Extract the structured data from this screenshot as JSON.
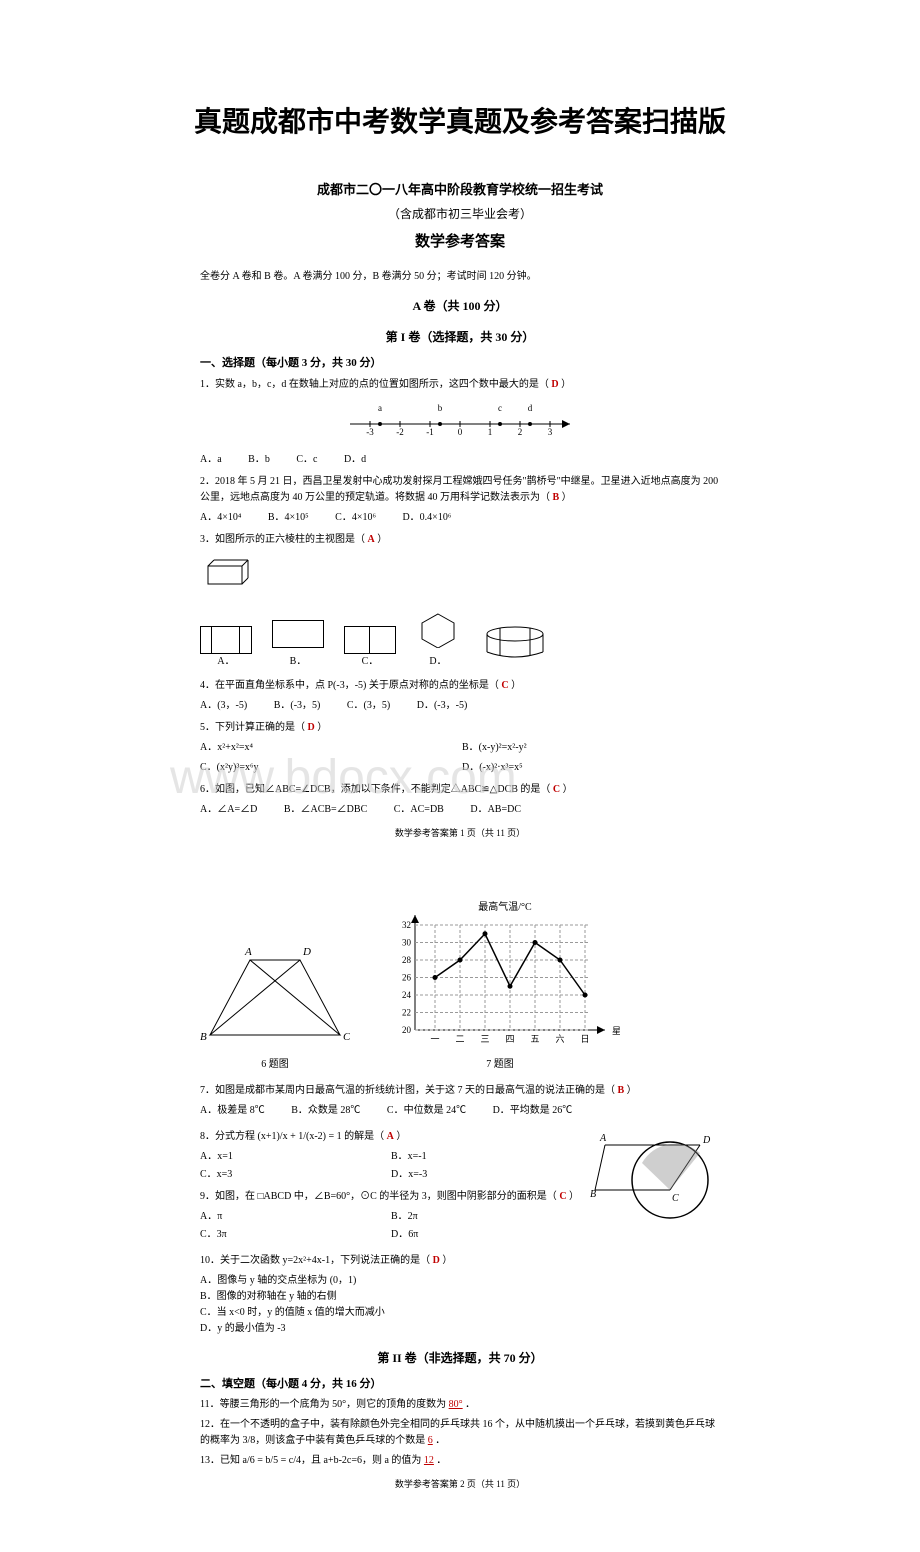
{
  "main_title": "真题成都市中考数学真题及参考答案扫描版",
  "exam_header": {
    "line1": "成都市二〇一八年高中阶段教育学校统一招生考试",
    "line2": "（含成都市初三毕业会考）",
    "line3": "数学参考答案",
    "info": "全卷分 A 卷和 B 卷。A 卷满分 100 分，B 卷满分 50 分；考试时间 120 分钟。"
  },
  "section_a": {
    "title": "A 卷（共 100 分）",
    "part1_title": "第 I 卷（选择题，共 30 分）",
    "xuanze_title": "一、选择题（每小题 3 分，共 30 分）"
  },
  "q1": {
    "text": "1．实数 a，b，c，d 在数轴上对应的点的位置如图所示，这四个数中最大的是（",
    "answer": "D",
    "close": "）",
    "number_line": {
      "labels_top": [
        "a",
        "b",
        "c",
        "d"
      ],
      "ticks": [
        "-3",
        "-2",
        "-1",
        "0",
        "1",
        "2",
        "3"
      ]
    },
    "opts": {
      "a": "A．a",
      "b": "B．b",
      "c": "C．c",
      "d": "D．d"
    }
  },
  "q2": {
    "text": "2．2018 年 5 月 21 日，西昌卫星发射中心成功发射探月工程嫦娥四号任务\"鹊桥号\"中继星。卫星进入近地点高度为 200 公里，远地点高度为 40 万公里的预定轨道。将数据 40 万用科学记数法表示为（",
    "answer": "B",
    "close": "）",
    "opts": {
      "a": "A．4×10⁴",
      "b": "B．4×10⁵",
      "c": "C．4×10⁶",
      "d": "D．0.4×10⁶"
    }
  },
  "q3": {
    "text": "3．如图所示的正六棱柱的主视图是（",
    "answer": "A",
    "close": "）",
    "shapes": {
      "a": "A．",
      "b": "B．",
      "c": "C．",
      "d": "D．"
    }
  },
  "q4": {
    "text": "4．在平面直角坐标系中，点 P(-3，-5) 关于原点对称的点的坐标是（",
    "answer": "C",
    "close": "）",
    "opts": {
      "a": "A．(3，-5)",
      "b": "B．(-3，5)",
      "c": "C．(3，5)",
      "d": "D．(-3，-5)"
    }
  },
  "q5": {
    "text": "5．下列计算正确的是（",
    "answer": "D",
    "close": "）",
    "opts": {
      "a": "A．x²+x²=x⁴",
      "b": "B．(x-y)²=x²-y²",
      "c": "C．(x²y)³=x⁶y",
      "d": "D．(-x)²·x³=x⁵"
    }
  },
  "q6": {
    "text": "6．如图，已知∠ABC=∠DCB，添加以下条件，不能判定△ABC≌△DCB 的是（",
    "answer": "C",
    "close": "）",
    "opts": {
      "a": "A．∠A=∠D",
      "b": "B．∠ACB=∠DBC",
      "c": "C．AC=DB",
      "d": "D．AB=DC"
    }
  },
  "watermark1": "www.bdocx.com",
  "page1_footer": "数学参考答案第 1 页（共 11 页）",
  "chart": {
    "y_label": "最高气温/°C",
    "x_label": "星期",
    "y_ticks": [
      "20",
      "22",
      "24",
      "26",
      "28",
      "30",
      "32"
    ],
    "x_ticks": [
      "一",
      "二",
      "三",
      "四",
      "五",
      "六",
      "日"
    ],
    "data_values": [
      26,
      28,
      31,
      25,
      30,
      28,
      24
    ],
    "line_color": "#000000",
    "grid_color": "#999999",
    "dash": "3,2"
  },
  "triangle_labels": {
    "a": "A",
    "b": "B",
    "c": "C",
    "d": "D"
  },
  "fig_labels": {
    "q6": "6 题图",
    "q7": "7 题图"
  },
  "q7": {
    "text": "7．如图是成都市某周内日最高气温的折线统计图，关于这 7 天的日最高气温的说法正确的是（",
    "answer": "B",
    "close": "）",
    "opts": {
      "a": "A．极差是 8℃",
      "b": "B．众数是 28℃",
      "c": "C．中位数是 24℃",
      "d": "D．平均数是 26℃"
    }
  },
  "q8": {
    "text": "8．分式方程 (x+1)/x + 1/(x-2) = 1 的解是（",
    "answer": "A",
    "close": "）",
    "opts": {
      "a": "A．x=1",
      "b": "B．x=-1",
      "c": "C．x=3",
      "d": "D．x=-3"
    }
  },
  "q9": {
    "text": "9．如图，在 □ABCD 中，∠B=60°，⊙C 的半径为 3，则图中阴影部分的面积是（",
    "answer": "C",
    "close": "）",
    "opts": {
      "a": "A．π",
      "b": "B．2π",
      "c": "C．3π",
      "d": "D．6π"
    }
  },
  "circle_labels": {
    "a": "A",
    "b": "B",
    "c": "C",
    "d": "D"
  },
  "q10": {
    "text": "10．关于二次函数 y=2x²+4x-1，下列说法正确的是（",
    "answer": "D",
    "close": "）",
    "opts": {
      "a": "A．图像与 y 轴的交点坐标为 (0，1)",
      "b": "B．图像的对称轴在 y 轴的右侧",
      "c": "C．当 x<0 时，y 的值随 x 值的增大而减小",
      "d": "D．y 的最小值为 -3"
    }
  },
  "section_b": {
    "title": "第 II 卷（非选择题，共 70 分）",
    "tiankong_title": "二、填空题（每小题 4 分，共 16 分）"
  },
  "q11": {
    "text": "11．等腰三角形的一个底角为 50°，则它的顶角的度数为",
    "answer": "80°",
    "close": "．"
  },
  "q12": {
    "text": "12．在一个不透明的盒子中，装有除颜色外完全相同的乒乓球共 16 个，从中随机摸出一个乒乓球，若摸到黄色乒乓球的概率为 3/8，则该盒子中装有黄色乒乓球的个数是",
    "answer": "6",
    "close": "．"
  },
  "q13": {
    "text": "13．已知 a/6 = b/5 = c/4，且 a+b-2c=6，则 a 的值为",
    "answer": "12",
    "close": "．"
  },
  "page2_footer": "数学参考答案第 2 页（共 11 页）"
}
